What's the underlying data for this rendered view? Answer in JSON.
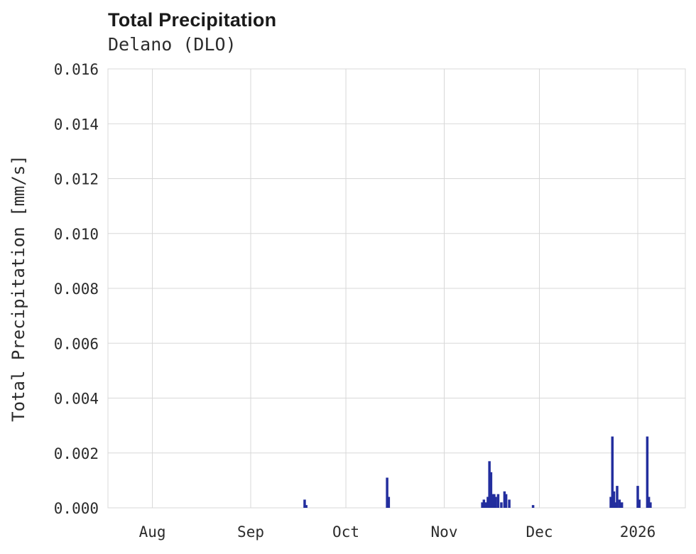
{
  "chart_data": {
    "type": "bar",
    "title": "Total Precipitation",
    "subtitle": "Delano (DLO)",
    "xlabel": "",
    "ylabel": "Total Precipitation [mm/s]",
    "ylim": [
      0,
      0.016
    ],
    "y_ticks": [
      0,
      0.002,
      0.004,
      0.006,
      0.008,
      0.01,
      0.012,
      0.014,
      0.016
    ],
    "y_tick_labels": [
      "0.000",
      "0.002",
      "0.004",
      "0.006",
      "0.008",
      "0.010",
      "0.012",
      "0.014",
      "0.016"
    ],
    "x_domain": [
      "2025-07-18",
      "2026-01-16"
    ],
    "x_ticks": [
      {
        "label": "Aug",
        "date": "2025-08-01"
      },
      {
        "label": "Sep",
        "date": "2025-09-01"
      },
      {
        "label": "Oct",
        "date": "2025-10-01"
      },
      {
        "label": "Nov",
        "date": "2025-11-01"
      },
      {
        "label": "Dec",
        "date": "2025-12-01"
      },
      {
        "label": "2026",
        "date": "2026-01-01"
      }
    ],
    "grid": true,
    "legend": "none",
    "colors": {
      "bar": "#232e9e",
      "grid": "#d8d8d8",
      "text": "#2b2b2b",
      "title": "#1a1a1a",
      "plot_background": "#ffffff"
    },
    "bar_width": 3.5,
    "series_name": "Total Precipitation",
    "points": [
      {
        "t": "2025-09-18T00:00",
        "v": 0.0003
      },
      {
        "t": "2025-09-18T12:00",
        "v": 0.0001
      },
      {
        "t": "2025-10-14T00:00",
        "v": 0.0011
      },
      {
        "t": "2025-10-14T12:00",
        "v": 0.0004
      },
      {
        "t": "2025-11-13T00:00",
        "v": 0.0002
      },
      {
        "t": "2025-11-13T12:00",
        "v": 0.0003
      },
      {
        "t": "2025-11-14T06:00",
        "v": 0.0002
      },
      {
        "t": "2025-11-14T18:00",
        "v": 0.0004
      },
      {
        "t": "2025-11-15T06:00",
        "v": 0.0017
      },
      {
        "t": "2025-11-15T18:00",
        "v": 0.0013
      },
      {
        "t": "2025-11-16T06:00",
        "v": 0.0005
      },
      {
        "t": "2025-11-16T18:00",
        "v": 0.0005
      },
      {
        "t": "2025-11-17T06:00",
        "v": 0.0004
      },
      {
        "t": "2025-11-18T00:00",
        "v": 0.0005
      },
      {
        "t": "2025-11-19T00:00",
        "v": 0.0002
      },
      {
        "t": "2025-11-20T00:00",
        "v": 0.0006
      },
      {
        "t": "2025-11-20T12:00",
        "v": 0.0005
      },
      {
        "t": "2025-11-21T12:00",
        "v": 0.0003
      },
      {
        "t": "2025-11-29T00:00",
        "v": 0.0001
      },
      {
        "t": "2025-12-23T12:00",
        "v": 0.0004
      },
      {
        "t": "2025-12-24T00:00",
        "v": 0.0026
      },
      {
        "t": "2025-12-24T12:00",
        "v": 0.0006
      },
      {
        "t": "2025-12-25T00:00",
        "v": 0.0002
      },
      {
        "t": "2025-12-25T12:00",
        "v": 0.0008
      },
      {
        "t": "2025-12-26T06:00",
        "v": 0.0003
      },
      {
        "t": "2025-12-27T00:00",
        "v": 0.0002
      },
      {
        "t": "2026-01-01T00:00",
        "v": 0.0008
      },
      {
        "t": "2026-01-01T12:00",
        "v": 0.0003
      },
      {
        "t": "2026-01-04T00:00",
        "v": 0.0026
      },
      {
        "t": "2026-01-04T12:00",
        "v": 0.0004
      },
      {
        "t": "2026-01-05T00:00",
        "v": 0.0002
      }
    ]
  }
}
